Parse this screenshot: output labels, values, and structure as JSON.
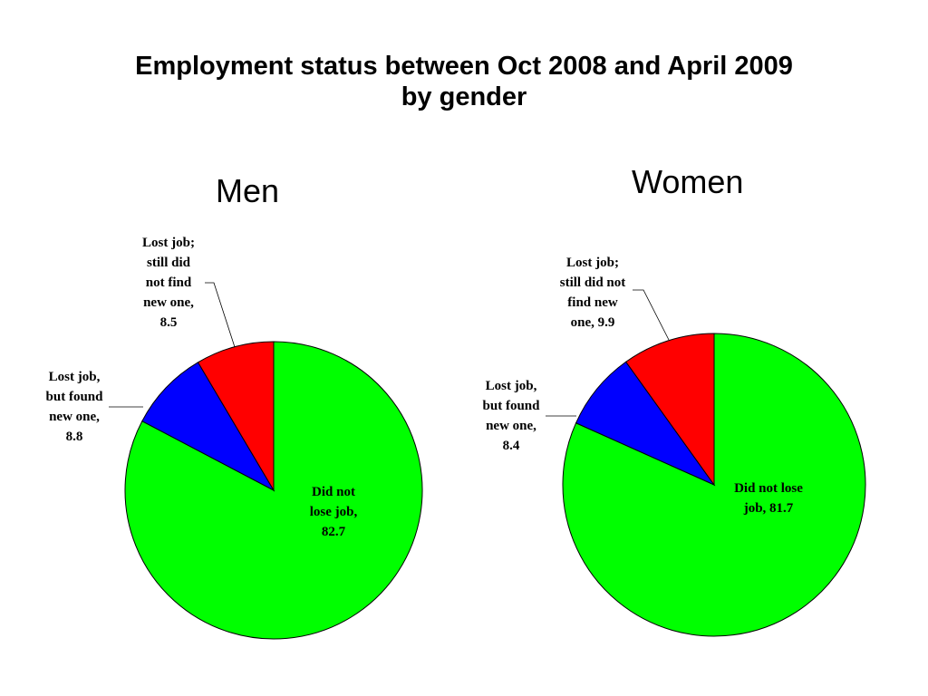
{
  "title_lines": [
    "Employment status between Oct 2008 and April 2009",
    "by gender"
  ],
  "chart_data": [
    {
      "type": "pie",
      "title": "Men",
      "slices": [
        {
          "category": "Did not lose job",
          "value": 82.7,
          "color": "#00ff00",
          "label_lines": [
            "Did not",
            "lose job,",
            "82.7"
          ]
        },
        {
          "category": "Lost job, but found new one",
          "value": 8.8,
          "color": "#0000ff",
          "label_lines": [
            "Lost job,",
            "but found",
            "new one,",
            "8.8"
          ]
        },
        {
          "category": "Lost job; still did not find new one",
          "value": 8.5,
          "color": "#ff0000",
          "label_lines": [
            "Lost job;",
            "still did",
            "not find",
            "new one,",
            "8.5"
          ]
        }
      ]
    },
    {
      "type": "pie",
      "title": "Women",
      "slices": [
        {
          "category": "Did not lose job",
          "value": 81.7,
          "color": "#00ff00",
          "label_lines": [
            "Did not lose",
            "job, 81.7"
          ]
        },
        {
          "category": "Lost job, but found new one",
          "value": 8.4,
          "color": "#0000ff",
          "label_lines": [
            "Lost job,",
            "but found",
            "new one,",
            "8.4"
          ]
        },
        {
          "category": "Lost job; still did not find new one",
          "value": 9.9,
          "color": "#ff0000",
          "label_lines": [
            "Lost job;",
            "still did not",
            "find new",
            "one, 9.9"
          ]
        }
      ]
    }
  ]
}
